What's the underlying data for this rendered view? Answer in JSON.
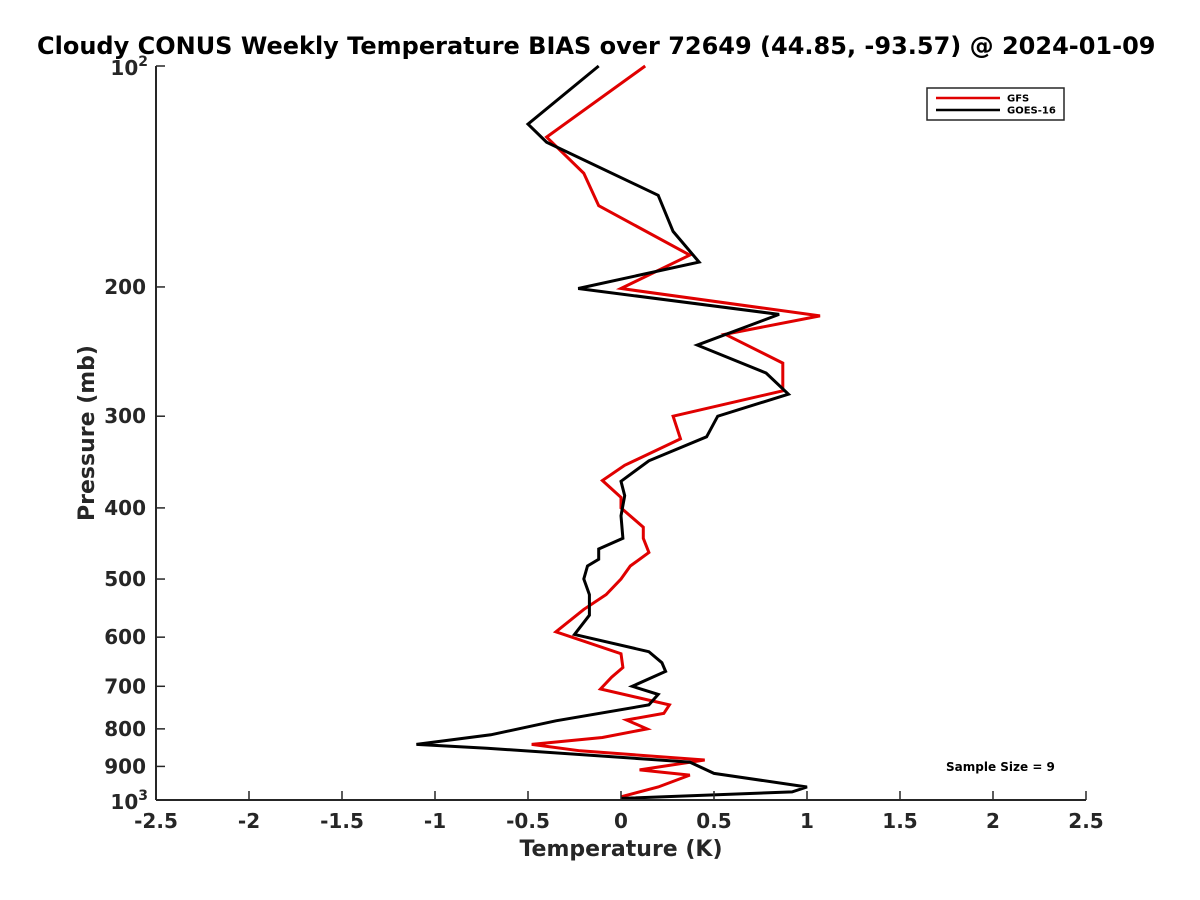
{
  "chart_data": {
    "type": "line",
    "title": "Cloudy CONUS Weekly Temperature BIAS over 72649 (44.85, -93.57) @ 2024-01-09",
    "xlabel": "Temperature (K)",
    "ylabel": "Pressure (mb)",
    "xlim": [
      -2.5,
      2.5
    ],
    "ylim": [
      1000,
      100
    ],
    "yscale": "log",
    "y_reversed": true,
    "grid": false,
    "legend_position": "top-right",
    "x_ticks": [
      -2.5,
      -2,
      -1.5,
      -1,
      -0.5,
      0,
      0.5,
      1,
      1.5,
      2,
      2.5
    ],
    "x_tick_labels": [
      "-2.5",
      "-2",
      "-1.5",
      "-1",
      "-0.5",
      "0",
      "0.5",
      "1",
      "1.5",
      "2",
      "2.5"
    ],
    "y_ticks": [
      {
        "value": 100,
        "base": "10",
        "exp": "2"
      },
      {
        "value": 200,
        "label": "200"
      },
      {
        "value": 300,
        "label": "300"
      },
      {
        "value": 400,
        "label": "400"
      },
      {
        "value": 500,
        "label": "500"
      },
      {
        "value": 600,
        "label": "600"
      },
      {
        "value": 700,
        "label": "700"
      },
      {
        "value": 800,
        "label": "800"
      },
      {
        "value": 900,
        "label": "900"
      },
      {
        "value": 1000,
        "base": "10",
        "exp": "3"
      }
    ],
    "series": [
      {
        "name": "GFS",
        "color": "#e00000",
        "points": [
          [
            0.13,
            100
          ],
          [
            -0.4,
            125
          ],
          [
            -0.2,
            140
          ],
          [
            -0.12,
            155
          ],
          [
            0.37,
            181
          ],
          [
            0.0,
            201
          ],
          [
            1.07,
            219
          ],
          [
            0.56,
            232
          ],
          [
            0.87,
            254
          ],
          [
            0.87,
            277
          ],
          [
            0.28,
            300
          ],
          [
            0.32,
            322
          ],
          [
            0.02,
            350
          ],
          [
            -0.1,
            367
          ],
          [
            0.0,
            387
          ],
          [
            0.0,
            400
          ],
          [
            0.12,
            425
          ],
          [
            0.12,
            440
          ],
          [
            0.15,
            460
          ],
          [
            0.05,
            480
          ],
          [
            0.0,
            500
          ],
          [
            -0.08,
            525
          ],
          [
            -0.2,
            550
          ],
          [
            -0.35,
            590
          ],
          [
            0.0,
            632
          ],
          [
            0.01,
            660
          ],
          [
            -0.05,
            680
          ],
          [
            -0.11,
            706
          ],
          [
            0.26,
            742
          ],
          [
            0.23,
            762
          ],
          [
            0.03,
            778
          ],
          [
            0.14,
            800
          ],
          [
            -0.1,
            822
          ],
          [
            -0.48,
            840
          ],
          [
            -0.22,
            857
          ],
          [
            0.45,
            882
          ],
          [
            0.1,
            910
          ],
          [
            0.37,
            925
          ],
          [
            0.2,
            960
          ],
          [
            0.0,
            990
          ]
        ]
      },
      {
        "name": "GOES-16",
        "color": "#000000",
        "points": [
          [
            -0.12,
            100
          ],
          [
            -0.5,
            120
          ],
          [
            -0.4,
            127
          ],
          [
            0.2,
            150
          ],
          [
            0.28,
            168
          ],
          [
            0.42,
            185
          ],
          [
            -0.23,
            201
          ],
          [
            0.85,
            218
          ],
          [
            0.41,
            240
          ],
          [
            0.78,
            262
          ],
          [
            0.9,
            280
          ],
          [
            0.52,
            300
          ],
          [
            0.46,
            320
          ],
          [
            0.15,
            345
          ],
          [
            0.0,
            368
          ],
          [
            0.02,
            385
          ],
          [
            0.0,
            410
          ],
          [
            0.01,
            440
          ],
          [
            -0.12,
            455
          ],
          [
            -0.12,
            470
          ],
          [
            -0.18,
            480
          ],
          [
            -0.2,
            500
          ],
          [
            -0.17,
            525
          ],
          [
            -0.17,
            560
          ],
          [
            -0.25,
            595
          ],
          [
            0.15,
            628
          ],
          [
            0.22,
            650
          ],
          [
            0.24,
            668
          ],
          [
            0.06,
            700
          ],
          [
            0.2,
            718
          ],
          [
            0.15,
            742
          ],
          [
            -0.35,
            780
          ],
          [
            -0.7,
            815
          ],
          [
            -1.1,
            840
          ],
          [
            -0.72,
            850
          ],
          [
            0.37,
            888
          ],
          [
            0.5,
            920
          ],
          [
            1.0,
            960
          ],
          [
            0.92,
            975
          ],
          [
            0.0,
            995
          ]
        ]
      }
    ],
    "annotations": [
      "Sample Size = 9"
    ]
  }
}
